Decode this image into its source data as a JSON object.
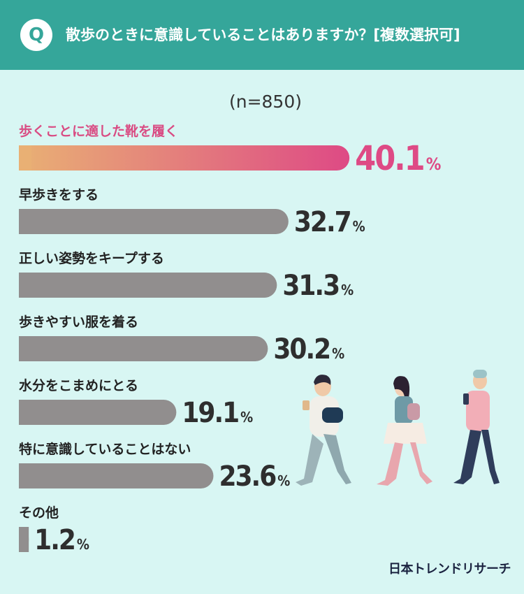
{
  "header": {
    "badge": "Q",
    "question": "散歩のときに意識していることはありますか？[複数選択可]"
  },
  "brand": "日本トレンドリサーチ",
  "colors": {
    "header_bg": "#35a69a",
    "page_bg": "#d8f6f3",
    "bar_gray": "#918e8e",
    "highlight_start": "#e9b074",
    "highlight_end": "#de4a85",
    "highlight_text": "#d94c83"
  },
  "chart_data": {
    "type": "bar",
    "orientation": "horizontal",
    "subtitle": "(n=850)",
    "unit": "%",
    "xlim": [
      0,
      50
    ],
    "grid": false,
    "legend": "none",
    "categories": [
      "歩くことに適した靴を履く",
      "早歩きをする",
      "正しい姿勢をキープする",
      "歩きやすい服を着る",
      "水分をこまめにとる",
      "特に意識していることはない",
      "その他"
    ],
    "values": [
      40.1,
      32.7,
      31.3,
      30.2,
      19.1,
      23.6,
      1.2
    ],
    "highlight_index": 0
  }
}
